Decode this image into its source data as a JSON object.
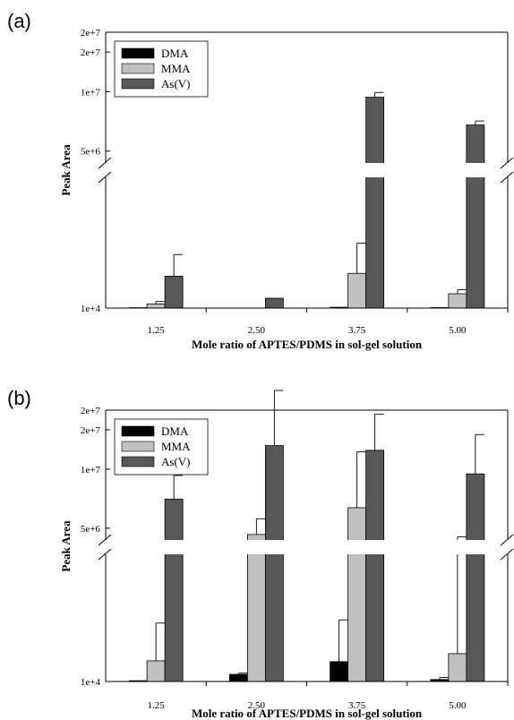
{
  "chart_data": [
    {
      "panel": "(a)",
      "type": "bar",
      "categories": [
        "1.25",
        "2.50",
        "3.75",
        "5.00"
      ],
      "xlabel": "Mole ratio of APTES/PDMS in sol-gel solution",
      "ylabel": "Peak Area",
      "yticks_upper": [
        "2e+7",
        "2e+7",
        "1e+7",
        "5e+6"
      ],
      "ytick_lower": "1e+4",
      "axis_break": true,
      "legend": {
        "position": "top-left"
      },
      "colors": {
        "DMA": "#000000",
        "MMA": "#c0c0c0",
        "As(V)": "#585858"
      },
      "series": [
        {
          "name": "DMA",
          "values": [
            9000,
            0,
            20000,
            12000
          ],
          "errors": [
            0,
            0,
            0,
            0
          ]
        },
        {
          "name": "MMA",
          "values": [
            100000,
            0,
            850000,
            350000
          ],
          "errors": [
            60000,
            0,
            740000,
            100000
          ]
        },
        {
          "name": "As(V)",
          "values": [
            780000,
            240000,
            11800000,
            8300000
          ],
          "errors": [
            530000,
            0,
            600000,
            500000
          ]
        }
      ]
    },
    {
      "panel": "(b)",
      "type": "bar",
      "categories": [
        "1.25",
        "2.50",
        "3.75",
        "5.00"
      ],
      "xlabel": "Mole ratio of APTES/PDMS in sol-gel solution",
      "ylabel": "Peak Area",
      "yticks_upper": [
        "2e+7",
        "2e+7",
        "1e+7",
        "5e+6"
      ],
      "ytick_lower": "1e+4",
      "axis_break": true,
      "legend": {
        "position": "top-left"
      },
      "colors": {
        "DMA": "#000000",
        "MMA": "#c0c0c0",
        "As(V)": "#585858"
      },
      "series": [
        {
          "name": "DMA",
          "values": [
            20000,
            180000,
            500000,
            50000
          ],
          "errors": [
            0,
            30000,
            1050000,
            50000
          ]
        },
        {
          "name": "MMA",
          "values": [
            520000,
            4200000,
            7600000,
            700000
          ],
          "errors": [
            950000,
            2000000,
            7100000,
            3200000
          ]
        },
        {
          "name": "As(V)",
          "values": [
            8700000,
            15500000,
            14900000,
            11900000
          ],
          "errors": [
            3000000,
            7000000,
            4600000,
            5000000
          ]
        }
      ]
    }
  ]
}
